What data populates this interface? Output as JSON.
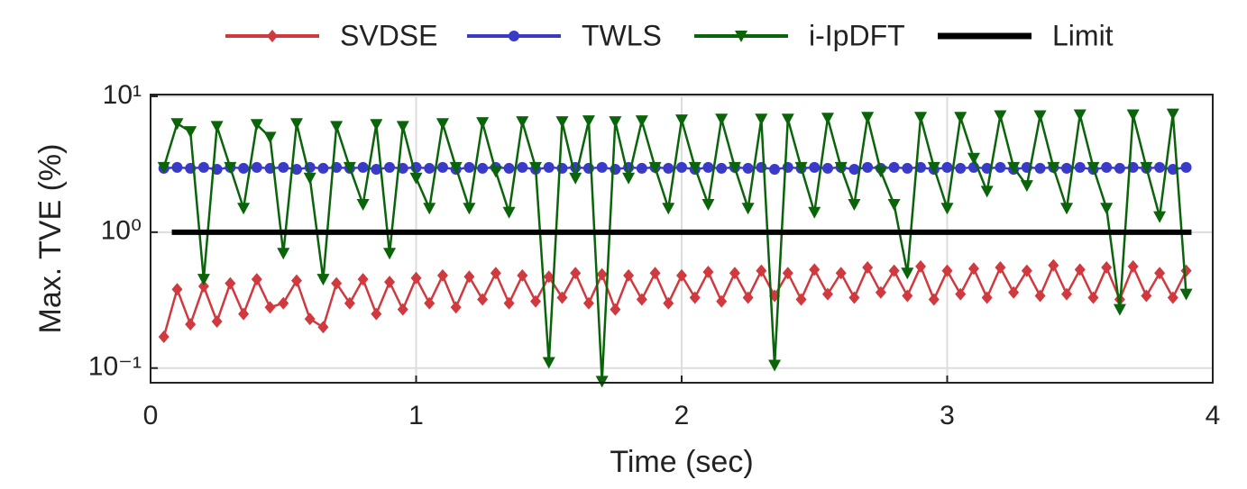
{
  "chart_data": {
    "type": "line",
    "xlabel": "Time (sec)",
    "ylabel": "Max. TVE (%)",
    "log_y": true,
    "grid": true,
    "legend": "top",
    "xlim": [
      0,
      4
    ],
    "xticks": [
      0,
      1,
      2,
      3,
      4
    ],
    "ylim": [
      0.078,
      10.3
    ],
    "yticks": [
      {
        "value": 0.1,
        "label": "10⁻¹"
      },
      {
        "value": 1,
        "label": "10⁰"
      },
      {
        "value": 10,
        "label": "10¹"
      }
    ],
    "x": [
      0.05,
      0.1,
      0.15,
      0.2,
      0.25,
      0.3,
      0.35,
      0.4,
      0.45,
      0.5,
      0.55,
      0.6,
      0.65,
      0.7,
      0.75,
      0.8,
      0.85,
      0.9,
      0.95,
      1.0,
      1.05,
      1.1,
      1.15,
      1.2,
      1.25,
      1.3,
      1.35,
      1.4,
      1.45,
      1.5,
      1.55,
      1.6,
      1.65,
      1.7,
      1.75,
      1.8,
      1.85,
      1.9,
      1.95,
      2.0,
      2.05,
      2.1,
      2.15,
      2.2,
      2.25,
      2.3,
      2.35,
      2.4,
      2.45,
      2.5,
      2.55,
      2.6,
      2.65,
      2.7,
      2.75,
      2.8,
      2.85,
      2.9,
      2.95,
      3.0,
      3.05,
      3.1,
      3.15,
      3.2,
      3.25,
      3.3,
      3.35,
      3.4,
      3.45,
      3.5,
      3.55,
      3.6,
      3.65,
      3.7,
      3.75,
      3.8,
      3.85,
      3.9
    ],
    "series": [
      {
        "name": "SVDSE",
        "color": "#d0393e",
        "marker": "diamond",
        "values": [
          0.17,
          0.38,
          0.21,
          0.4,
          0.22,
          0.42,
          0.25,
          0.45,
          0.28,
          0.3,
          0.44,
          0.23,
          0.2,
          0.42,
          0.3,
          0.45,
          0.25,
          0.43,
          0.27,
          0.46,
          0.3,
          0.48,
          0.28,
          0.47,
          0.32,
          0.5,
          0.3,
          0.48,
          0.31,
          0.47,
          0.33,
          0.5,
          0.3,
          0.49,
          0.27,
          0.48,
          0.32,
          0.5,
          0.3,
          0.48,
          0.33,
          0.51,
          0.31,
          0.5,
          0.33,
          0.52,
          0.34,
          0.5,
          0.32,
          0.53,
          0.35,
          0.5,
          0.33,
          0.55,
          0.36,
          0.52,
          0.34,
          0.56,
          0.32,
          0.52,
          0.35,
          0.54,
          0.33,
          0.55,
          0.36,
          0.52,
          0.34,
          0.57,
          0.35,
          0.53,
          0.33,
          0.55,
          0.32,
          0.56,
          0.34,
          0.5,
          0.33,
          0.52
        ]
      },
      {
        "name": "TWLS",
        "color": "#3a3ac8",
        "marker": "circle",
        "values": [
          2.95,
          3.0,
          2.95,
          3.0,
          2.9,
          3.0,
          2.95,
          3.0,
          2.95,
          3.0,
          2.9,
          3.0,
          2.95,
          3.0,
          2.95,
          3.0,
          2.9,
          3.0,
          2.95,
          3.0,
          2.95,
          3.0,
          2.9,
          3.0,
          2.95,
          3.0,
          2.95,
          3.0,
          2.9,
          3.0,
          2.95,
          3.0,
          2.95,
          3.0,
          2.9,
          3.0,
          2.95,
          3.0,
          2.95,
          3.0,
          2.9,
          3.0,
          2.95,
          3.0,
          2.95,
          3.0,
          2.9,
          3.0,
          2.95,
          3.0,
          2.95,
          3.0,
          2.9,
          3.0,
          2.95,
          3.0,
          2.95,
          3.0,
          2.9,
          3.0,
          2.95,
          3.0,
          2.95,
          3.0,
          2.9,
          3.0,
          2.95,
          3.0,
          2.95,
          3.0,
          2.9,
          3.0,
          2.95,
          3.0,
          2.95,
          3.0,
          2.9,
          3.0
        ]
      },
      {
        "name": "i-IpDFT",
        "color": "#0a640a",
        "marker": "triangle-down",
        "values": [
          3.0,
          6.3,
          5.5,
          0.45,
          6.0,
          3.0,
          1.5,
          6.2,
          5.0,
          0.7,
          6.3,
          2.5,
          0.45,
          6.0,
          3.0,
          1.6,
          6.2,
          0.7,
          6.0,
          2.5,
          1.5,
          6.3,
          3.0,
          1.5,
          6.4,
          2.8,
          1.4,
          6.5,
          3.0,
          0.11,
          6.5,
          2.5,
          6.6,
          0.08,
          6.5,
          2.5,
          6.6,
          3.0,
          1.5,
          6.7,
          3.0,
          1.6,
          6.8,
          3.0,
          1.5,
          6.8,
          0.105,
          6.8,
          3.0,
          1.4,
          6.9,
          3.0,
          1.6,
          7.0,
          2.8,
          1.6,
          0.5,
          7.0,
          3.0,
          1.5,
          7.0,
          3.5,
          2.0,
          7.2,
          3.0,
          2.2,
          7.2,
          3.0,
          1.5,
          7.3,
          3.0,
          1.5,
          0.27,
          7.3,
          3.0,
          1.3,
          7.4,
          0.35
        ]
      },
      {
        "name": "Limit",
        "color": "#000000",
        "marker": "none",
        "x": [
          0.08,
          3.92
        ],
        "values": [
          1,
          1
        ]
      }
    ]
  }
}
